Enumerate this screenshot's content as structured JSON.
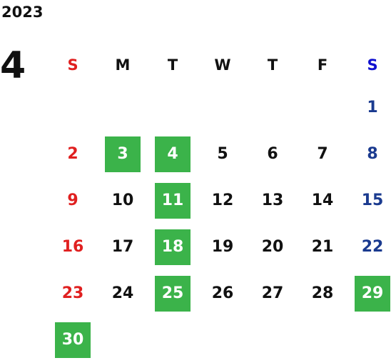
{
  "year": "2023",
  "month": "4",
  "weekdays": [
    "S",
    "M",
    "T",
    "W",
    "T",
    "F",
    "S"
  ],
  "highlight_color": "#3bb34a",
  "colors": {
    "sunday": "#e02020",
    "saturday": "#1a3a8f",
    "saturday_header": "#1010d0",
    "weekday": "#111111"
  },
  "weeks": [
    [
      "",
      "",
      "",
      "",
      "",
      "",
      "1"
    ],
    [
      "2",
      "3",
      "4",
      "5",
      "6",
      "7",
      "8"
    ],
    [
      "9",
      "10",
      "11",
      "12",
      "13",
      "14",
      "15"
    ],
    [
      "16",
      "17",
      "18",
      "19",
      "20",
      "21",
      "22"
    ],
    [
      "23",
      "24",
      "25",
      "26",
      "27",
      "28",
      "29"
    ],
    [
      "30",
      "",
      "",
      "",
      "",
      "",
      ""
    ]
  ],
  "highlighted_days": [
    "3",
    "4",
    "11",
    "18",
    "25",
    "29",
    "30"
  ]
}
